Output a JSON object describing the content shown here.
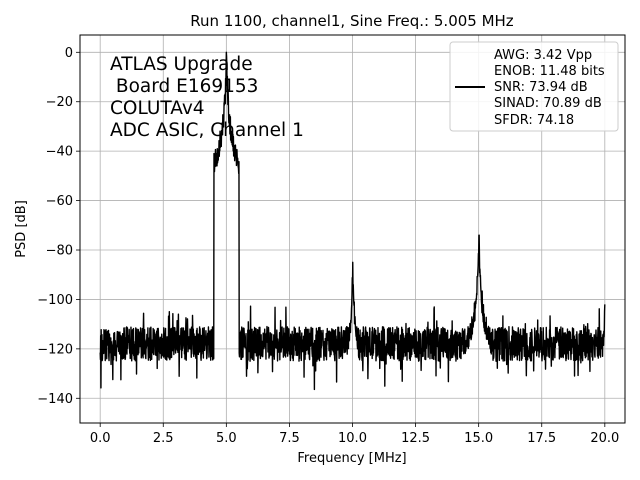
{
  "chart_data": {
    "type": "line",
    "title": "Run 1100, channel1, Sine Freq.: 5.005 MHz",
    "xlabel": "Frequency [MHz]",
    "ylabel": "PSD [dB]",
    "xlim": [
      -0.8,
      20.8
    ],
    "ylim": [
      -150,
      7
    ],
    "xticks": [
      0.0,
      2.5,
      5.0,
      7.5,
      10.0,
      12.5,
      15.0,
      17.5,
      20.0
    ],
    "xtick_labels": [
      "0.0",
      "2.5",
      "5.0",
      "7.5",
      "10.0",
      "12.5",
      "15.0",
      "17.5",
      "20.0"
    ],
    "yticks": [
      0,
      -20,
      -40,
      -60,
      -80,
      -100,
      -120,
      -140
    ],
    "ytick_labels": [
      "0",
      "−20",
      "−40",
      "−60",
      "−80",
      "−100",
      "−120",
      "−140"
    ],
    "grid": true,
    "line_color": "#000000",
    "annotation": [
      "ATLAS Upgrade",
      " Board E169153",
      "COLUTAv4",
      "ADC ASIC, Channel 1"
    ],
    "legend": {
      "placement": "top-right",
      "entries": [
        "AWG: 3.42 Vpp",
        "ENOB: 11.48 bits",
        "SNR: 73.94 dB",
        "SINAD: 70.89 dB",
        "SFDR: 74.18"
      ]
    },
    "series": [
      {
        "noise_floor_db": -118,
        "noise_range_db": [
          -143,
          -103
        ],
        "peaks": [
          {
            "x": 5.005,
            "y": 0,
            "label": "fundamental"
          },
          {
            "x": 10.01,
            "y": -85
          },
          {
            "x": 15.015,
            "y": -74
          },
          {
            "x": 20.0,
            "y": -102
          }
        ]
      }
    ]
  }
}
